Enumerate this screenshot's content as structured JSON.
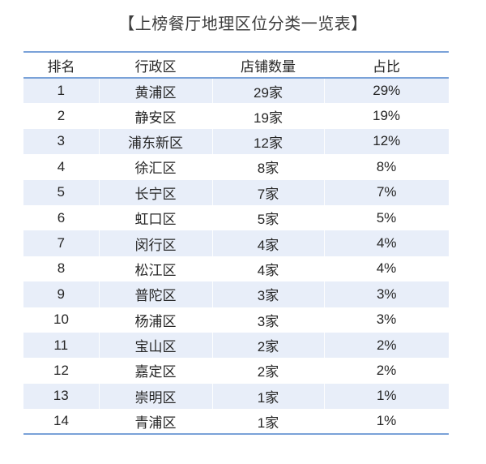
{
  "title": "【上榜餐厅地理区位分类一览表】",
  "chart_data": {
    "type": "table",
    "title": "【上榜餐厅地理区位分类一览表】",
    "columns": [
      "排名",
      "行政区",
      "店铺数量",
      "占比"
    ],
    "rows": [
      [
        "1",
        "黄浦区",
        "29家",
        "29%"
      ],
      [
        "2",
        "静安区",
        "19家",
        "19%"
      ],
      [
        "3",
        "浦东新区",
        "12家",
        "12%"
      ],
      [
        "4",
        "徐汇区",
        "8家",
        "8%"
      ],
      [
        "5",
        "长宁区",
        "7家",
        "7%"
      ],
      [
        "6",
        "虹口区",
        "5家",
        "5%"
      ],
      [
        "7",
        "闵行区",
        "4家",
        "4%"
      ],
      [
        "8",
        "松江区",
        "4家",
        "4%"
      ],
      [
        "9",
        "普陀区",
        "3家",
        "3%"
      ],
      [
        "10",
        "杨浦区",
        "3家",
        "3%"
      ],
      [
        "11",
        "宝山区",
        "2家",
        "2%"
      ],
      [
        "12",
        "嘉定区",
        "2家",
        "2%"
      ],
      [
        "13",
        "崇明区",
        "1家",
        "1%"
      ],
      [
        "14",
        "青浦区",
        "1家",
        "1%"
      ]
    ],
    "store_counts": [
      29,
      19,
      12,
      8,
      7,
      5,
      4,
      4,
      3,
      3,
      2,
      2,
      1,
      1
    ],
    "share_percent": [
      29,
      19,
      12,
      8,
      7,
      5,
      4,
      4,
      3,
      3,
      2,
      2,
      1,
      1
    ]
  },
  "colors": {
    "stripe": "#e8eef9",
    "border": "#7aa2d8",
    "text": "#262626",
    "title_text": "#3f3f3f",
    "background": "#ffffff"
  }
}
